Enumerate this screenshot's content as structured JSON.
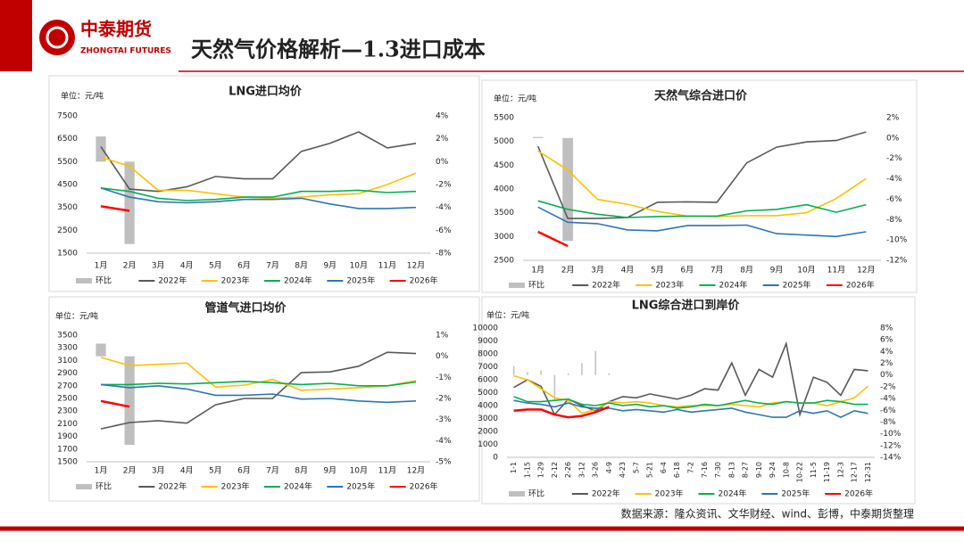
{
  "header": {
    "logo_cn": "中泰期货",
    "logo_en": "ZHONGTAI FUTURES",
    "title": "天然气价格解析—1.3进口成本"
  },
  "footer": {
    "source": "数据来源：隆众资讯、文华财经、wind、彭博，中泰期货整理"
  },
  "chart_data": [
    {
      "type": "line",
      "title": "LNG进口均价",
      "unit_label": "单位：元/吨",
      "categories": [
        "1月",
        "2月",
        "3月",
        "4月",
        "5月",
        "6月",
        "7月",
        "8月",
        "9月",
        "10月",
        "11月",
        "12月"
      ],
      "ylim": [
        1500,
        7500
      ],
      "yticks": [
        1500,
        2500,
        3500,
        4500,
        5500,
        6500,
        7500
      ],
      "y2lim": [
        -8,
        4
      ],
      "y2ticks": [
        {
          "value": -8,
          "label": "-8%"
        },
        {
          "value": -6,
          "label": "-6%"
        },
        {
          "value": -4,
          "label": "-4%"
        },
        {
          "value": -2,
          "label": "-2%"
        },
        {
          "value": 0,
          "label": "0%"
        },
        {
          "value": 2,
          "label": "2%"
        },
        {
          "value": 4,
          "label": "4%"
        }
      ],
      "series": [
        {
          "name": "环比",
          "type": "bar",
          "axis": "y2",
          "color": "#bfbfbf",
          "values": [
            2.2,
            -7.2,
            null,
            null,
            null,
            null,
            null,
            null,
            null,
            null,
            null,
            null
          ]
        },
        {
          "name": "2022年",
          "color": "#595959",
          "values": [
            6150,
            4300,
            4200,
            4400,
            4850,
            4750,
            4750,
            5950,
            6300,
            6800,
            6100,
            6300
          ]
        },
        {
          "name": "2023年",
          "color": "#ffc000",
          "values": [
            5700,
            5300,
            4250,
            4250,
            4100,
            3950,
            3900,
            3950,
            4050,
            4100,
            4500,
            5000
          ]
        },
        {
          "name": "2024年",
          "color": "#00b050",
          "values": [
            4350,
            4200,
            3900,
            3800,
            3850,
            3950,
            3950,
            4200,
            4200,
            4250,
            4150,
            4200
          ]
        },
        {
          "name": "2025年",
          "color": "#2e75b6",
          "values": [
            4350,
            3950,
            3750,
            3700,
            3750,
            3850,
            3850,
            3900,
            3650,
            3450,
            3450,
            3500
          ]
        },
        {
          "name": "2026年",
          "color": "#ff0000",
          "values": [
            3550,
            3350,
            null,
            null,
            null,
            null,
            null,
            null,
            null,
            null,
            null,
            null
          ]
        }
      ]
    },
    {
      "type": "line",
      "title": "天然气综合进口价",
      "unit_label": "单位：元/吨",
      "categories": [
        "1月",
        "2月",
        "3月",
        "4月",
        "5月",
        "6月",
        "7月",
        "8月",
        "9月",
        "10月",
        "11月",
        "12月"
      ],
      "ylim": [
        2500,
        5500
      ],
      "yticks": [
        2500,
        3000,
        3500,
        4000,
        4500,
        5000,
        5500
      ],
      "y2lim": [
        -12,
        2
      ],
      "y2ticks": [
        {
          "value": -12,
          "label": "-12%"
        },
        {
          "value": -10,
          "label": "-10%"
        },
        {
          "value": -8,
          "label": "-8%"
        },
        {
          "value": -6,
          "label": "-6%"
        },
        {
          "value": -4,
          "label": "-4%"
        },
        {
          "value": -2,
          "label": "-2%"
        },
        {
          "value": 0,
          "label": "0%"
        },
        {
          "value": 2,
          "label": "2%"
        }
      ],
      "series": [
        {
          "name": "环比",
          "type": "bar",
          "axis": "y2",
          "color": "#bfbfbf",
          "values": [
            0.1,
            -10.1,
            null,
            null,
            null,
            null,
            null,
            null,
            null,
            null,
            null,
            null
          ]
        },
        {
          "name": "2022年",
          "color": "#595959",
          "values": [
            4900,
            3380,
            3380,
            3400,
            3720,
            3730,
            3720,
            4550,
            4880,
            4990,
            5020,
            5200
          ]
        },
        {
          "name": "2023年",
          "color": "#ffc000",
          "values": [
            4800,
            4400,
            3780,
            3680,
            3530,
            3430,
            3420,
            3440,
            3440,
            3500,
            3800,
            4220
          ]
        },
        {
          "name": "2024年",
          "color": "#00b050",
          "values": [
            3750,
            3570,
            3470,
            3400,
            3420,
            3430,
            3430,
            3540,
            3570,
            3670,
            3510,
            3670
          ]
        },
        {
          "name": "2025年",
          "color": "#2e75b6",
          "values": [
            3620,
            3300,
            3270,
            3140,
            3120,
            3230,
            3230,
            3240,
            3060,
            3030,
            3000,
            3100
          ]
        },
        {
          "name": "2026年",
          "color": "#ff0000",
          "values": [
            3100,
            2800,
            null,
            null,
            null,
            null,
            null,
            null,
            null,
            null,
            null,
            null
          ]
        }
      ]
    },
    {
      "type": "line",
      "title": "管道气进口均价",
      "unit_label": "单位：元/吨",
      "categories": [
        "1月",
        "2月",
        "3月",
        "4月",
        "5月",
        "6月",
        "7月",
        "8月",
        "9月",
        "10月",
        "11月",
        "12月"
      ],
      "ylim": [
        1500,
        3500
      ],
      "yticks": [
        1500,
        1700,
        1900,
        2100,
        2300,
        2500,
        2700,
        2900,
        3100,
        3300,
        3500
      ],
      "y2lim": [
        -5,
        1
      ],
      "y2ticks": [
        {
          "value": -5,
          "label": "-5%"
        },
        {
          "value": -4,
          "label": "-4%"
        },
        {
          "value": -3,
          "label": "-3%"
        },
        {
          "value": -2,
          "label": "-2%"
        },
        {
          "value": -1,
          "label": "-1%"
        },
        {
          "value": 0,
          "label": "0%"
        },
        {
          "value": 1,
          "label": "1%"
        }
      ],
      "series": [
        {
          "name": "环比",
          "type": "bar",
          "axis": "y2",
          "color": "#bfbfbf",
          "values": [
            0.6,
            -4.2,
            null,
            null,
            null,
            null,
            null,
            null,
            null,
            null,
            null,
            null
          ]
        },
        {
          "name": "2022年",
          "color": "#595959",
          "values": [
            2020,
            2120,
            2150,
            2110,
            2400,
            2500,
            2500,
            2910,
            2920,
            3010,
            3230,
            3210
          ]
        },
        {
          "name": "2023年",
          "color": "#ffc000",
          "values": [
            3150,
            3020,
            3040,
            3060,
            2680,
            2710,
            2800,
            2630,
            2650,
            2670,
            2700,
            2780
          ]
        },
        {
          "name": "2024年",
          "color": "#00b050",
          "values": [
            2720,
            2720,
            2740,
            2730,
            2750,
            2770,
            2750,
            2720,
            2740,
            2700,
            2700,
            2760
          ]
        },
        {
          "name": "2025年",
          "color": "#2e75b6",
          "values": [
            2720,
            2670,
            2700,
            2650,
            2550,
            2550,
            2570,
            2490,
            2500,
            2460,
            2440,
            2460
          ]
        },
        {
          "name": "2026年",
          "color": "#ff0000",
          "values": [
            2460,
            2370,
            null,
            null,
            null,
            null,
            null,
            null,
            null,
            null,
            null,
            null
          ]
        }
      ]
    },
    {
      "type": "line",
      "title": "LNG综合进口到岸价",
      "unit_label": "单位：元/吨",
      "categories": [
        "1-1",
        "1-15",
        "1-29",
        "2-12",
        "2-26",
        "3-12",
        "3-26",
        "4-9",
        "4-23",
        "5-7",
        "5-21",
        "6-4",
        "6-18",
        "7-2",
        "7-16",
        "7-30",
        "8-13",
        "8-27",
        "9-10",
        "9-24",
        "10-8",
        "10-22",
        "11-5",
        "11-19",
        "12-3",
        "12-17",
        "12-31"
      ],
      "ylim": [
        0,
        10000
      ],
      "yticks": [
        0,
        1000,
        2000,
        3000,
        4000,
        5000,
        6000,
        7000,
        8000,
        9000,
        10000
      ],
      "y2lim": [
        -14,
        8
      ],
      "y2ticks": [
        {
          "value": -14,
          "label": "-14%"
        },
        {
          "value": -12,
          "label": "-12%"
        },
        {
          "value": -10,
          "label": "-10%"
        },
        {
          "value": -8,
          "label": "-8%"
        },
        {
          "value": -6,
          "label": "-6%"
        },
        {
          "value": -4,
          "label": "-4%"
        },
        {
          "value": -2,
          "label": "-2%"
        },
        {
          "value": 0,
          "label": "0%"
        },
        {
          "value": 2,
          "label": "2%"
        },
        {
          "value": 4,
          "label": "4%"
        },
        {
          "value": 6,
          "label": "6%"
        },
        {
          "value": 8,
          "label": "8%"
        }
      ],
      "series": [
        {
          "name": "环比",
          "type": "bar",
          "axis": "y2",
          "color": "#bfbfbf",
          "values": [
            1.5,
            0.5,
            0.8,
            -4.5,
            0.3,
            2.0,
            4.1,
            0.3,
            null,
            null,
            null,
            null,
            null,
            null,
            null,
            null,
            null,
            null,
            null,
            null,
            null,
            null,
            null,
            null,
            null,
            null,
            null
          ]
        },
        {
          "name": "2022年",
          "color": "#595959",
          "values": [
            5400,
            6000,
            5500,
            3300,
            4500,
            4000,
            3600,
            4300,
            4700,
            4600,
            4900,
            4700,
            4500,
            4800,
            5300,
            5200,
            7300,
            4800,
            6800,
            6200,
            8800,
            3300,
            6200,
            5800,
            4800,
            6800,
            6700
          ]
        },
        {
          "name": "2023年",
          "color": "#ffc000",
          "values": [
            6300,
            6000,
            5300,
            4600,
            4400,
            3400,
            3700,
            4300,
            4200,
            4300,
            4200,
            4000,
            3900,
            4000,
            4000,
            4000,
            4100,
            4000,
            3900,
            4200,
            4300,
            4200,
            4200,
            4000,
            4300,
            4600,
            5500
          ]
        },
        {
          "name": "2024年",
          "color": "#00b050",
          "values": [
            4700,
            4300,
            4300,
            4400,
            4500,
            4100,
            4000,
            4200,
            4000,
            4100,
            3900,
            4000,
            3800,
            3900,
            4100,
            4000,
            4200,
            4400,
            4200,
            4100,
            4300,
            4200,
            4200,
            4400,
            4300,
            4100,
            4100
          ]
        },
        {
          "name": "2025年",
          "color": "#2e75b6",
          "values": [
            4400,
            4200,
            4100,
            3900,
            4200,
            3900,
            3800,
            3800,
            3600,
            3700,
            3600,
            3500,
            3700,
            3500,
            3600,
            3700,
            3800,
            3500,
            3300,
            3100,
            3100,
            3600,
            3400,
            3600,
            3100,
            3600,
            3400
          ]
        },
        {
          "name": "2026年",
          "color": "#ff0000",
          "values": [
            3600,
            3700,
            3700,
            3300,
            3100,
            3200,
            3500,
            3900,
            null,
            null,
            null,
            null,
            null,
            null,
            null,
            null,
            null,
            null,
            null,
            null,
            null,
            null,
            null,
            null,
            null,
            null,
            null
          ]
        }
      ]
    }
  ]
}
